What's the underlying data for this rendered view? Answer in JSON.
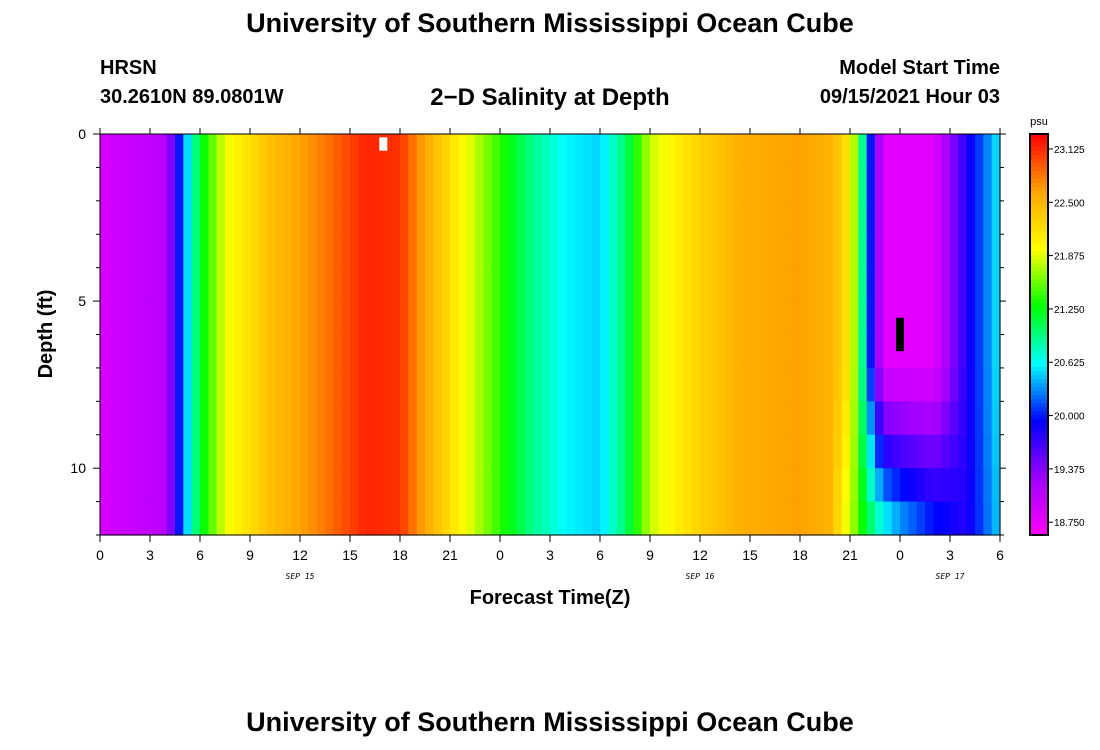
{
  "page": {
    "title_top": "University of Southern Mississippi Ocean Cube",
    "title_bottom": "University of Southern Mississippi Ocean Cube",
    "station": "HRSN",
    "coordinates": "30.2610N  89.0801W",
    "subtitle": "2−D Salinity at Depth",
    "model_start_label": "Model Start Time",
    "model_start_value": "09/15/2021 Hour 03"
  },
  "chart_data": {
    "type": "heatmap",
    "title": "2−D Salinity at Depth",
    "xlabel": "Forecast Time(Z)",
    "ylabel": "Depth (ft)",
    "x_range_hours": [
      0,
      54
    ],
    "x_ticks": [
      {
        "h": 0,
        "label": "0"
      },
      {
        "h": 3,
        "label": "3"
      },
      {
        "h": 6,
        "label": "6"
      },
      {
        "h": 9,
        "label": "9"
      },
      {
        "h": 12,
        "label": "12"
      },
      {
        "h": 15,
        "label": "15"
      },
      {
        "h": 18,
        "label": "18"
      },
      {
        "h": 21,
        "label": "21"
      },
      {
        "h": 24,
        "label": "0"
      },
      {
        "h": 27,
        "label": "3"
      },
      {
        "h": 30,
        "label": "6"
      },
      {
        "h": 33,
        "label": "9"
      },
      {
        "h": 36,
        "label": "12"
      },
      {
        "h": 39,
        "label": "15"
      },
      {
        "h": 42,
        "label": "18"
      },
      {
        "h": 45,
        "label": "21"
      },
      {
        "h": 48,
        "label": "0"
      },
      {
        "h": 51,
        "label": "3"
      },
      {
        "h": 54,
        "label": "6"
      }
    ],
    "date_labels": [
      {
        "h": 12,
        "label": "SEP 15"
      },
      {
        "h": 36,
        "label": "SEP 16"
      },
      {
        "h": 51,
        "label": "SEP 17"
      }
    ],
    "y_range_ft": [
      0,
      12
    ],
    "y_ticks": [
      0,
      5,
      10
    ],
    "colorbar": {
      "unit": "psu",
      "min": 18.6,
      "max": 23.3,
      "labels": [
        "23.125",
        "22.500",
        "21.875",
        "21.250",
        "20.625",
        "20.000",
        "19.375",
        "18.750"
      ],
      "ramp": [
        "#ff00ff",
        "#a000ff",
        "#0000ff",
        "#00ffff",
        "#00ff00",
        "#ffff00",
        "#ffa500",
        "#ff0000"
      ]
    },
    "surface_salinity_psu": [
      {
        "h": 0,
        "v": 18.9
      },
      {
        "h": 4,
        "v": 19.1
      },
      {
        "h": 5,
        "v": 20.3
      },
      {
        "h": 6,
        "v": 21.2
      },
      {
        "h": 7.5,
        "v": 21.9
      },
      {
        "h": 10,
        "v": 22.4
      },
      {
        "h": 13,
        "v": 22.75
      },
      {
        "h": 16,
        "v": 23.15
      },
      {
        "h": 18,
        "v": 23.1
      },
      {
        "h": 19,
        "v": 22.75
      },
      {
        "h": 21,
        "v": 22.2
      },
      {
        "h": 24,
        "v": 21.4
      },
      {
        "h": 26,
        "v": 20.9
      },
      {
        "h": 28,
        "v": 20.6
      },
      {
        "h": 30,
        "v": 20.5
      },
      {
        "h": 31.5,
        "v": 21.0
      },
      {
        "h": 33,
        "v": 21.8
      },
      {
        "h": 36,
        "v": 22.3
      },
      {
        "h": 38.5,
        "v": 22.55
      },
      {
        "h": 42,
        "v": 22.65
      },
      {
        "h": 44,
        "v": 22.5
      },
      {
        "h": 45,
        "v": 22.1
      },
      {
        "h": 45.5,
        "v": 21.4
      },
      {
        "h": 46,
        "v": 20.4
      },
      {
        "h": 47,
        "v": 18.8
      },
      {
        "h": 50,
        "v": 18.8
      },
      {
        "h": 52,
        "v": 19.8
      },
      {
        "h": 54,
        "v": 20.6
      }
    ],
    "bottom_salinity_psu": [
      {
        "h": 45,
        "v": 21.8
      },
      {
        "h": 46,
        "v": 21.2
      },
      {
        "h": 47,
        "v": 20.8
      },
      {
        "h": 48,
        "v": 20.5
      },
      {
        "h": 50,
        "v": 20.1
      },
      {
        "h": 52,
        "v": 19.8
      },
      {
        "h": 54,
        "v": 20.5
      }
    ],
    "observation_markers": [
      {
        "h": 17,
        "depth_from": 0.1,
        "depth_to": 0.5,
        "color": "#ffffff"
      },
      {
        "h": 48,
        "depth_from": 5.5,
        "depth_to": 6.5,
        "color": "#000000"
      }
    ]
  }
}
